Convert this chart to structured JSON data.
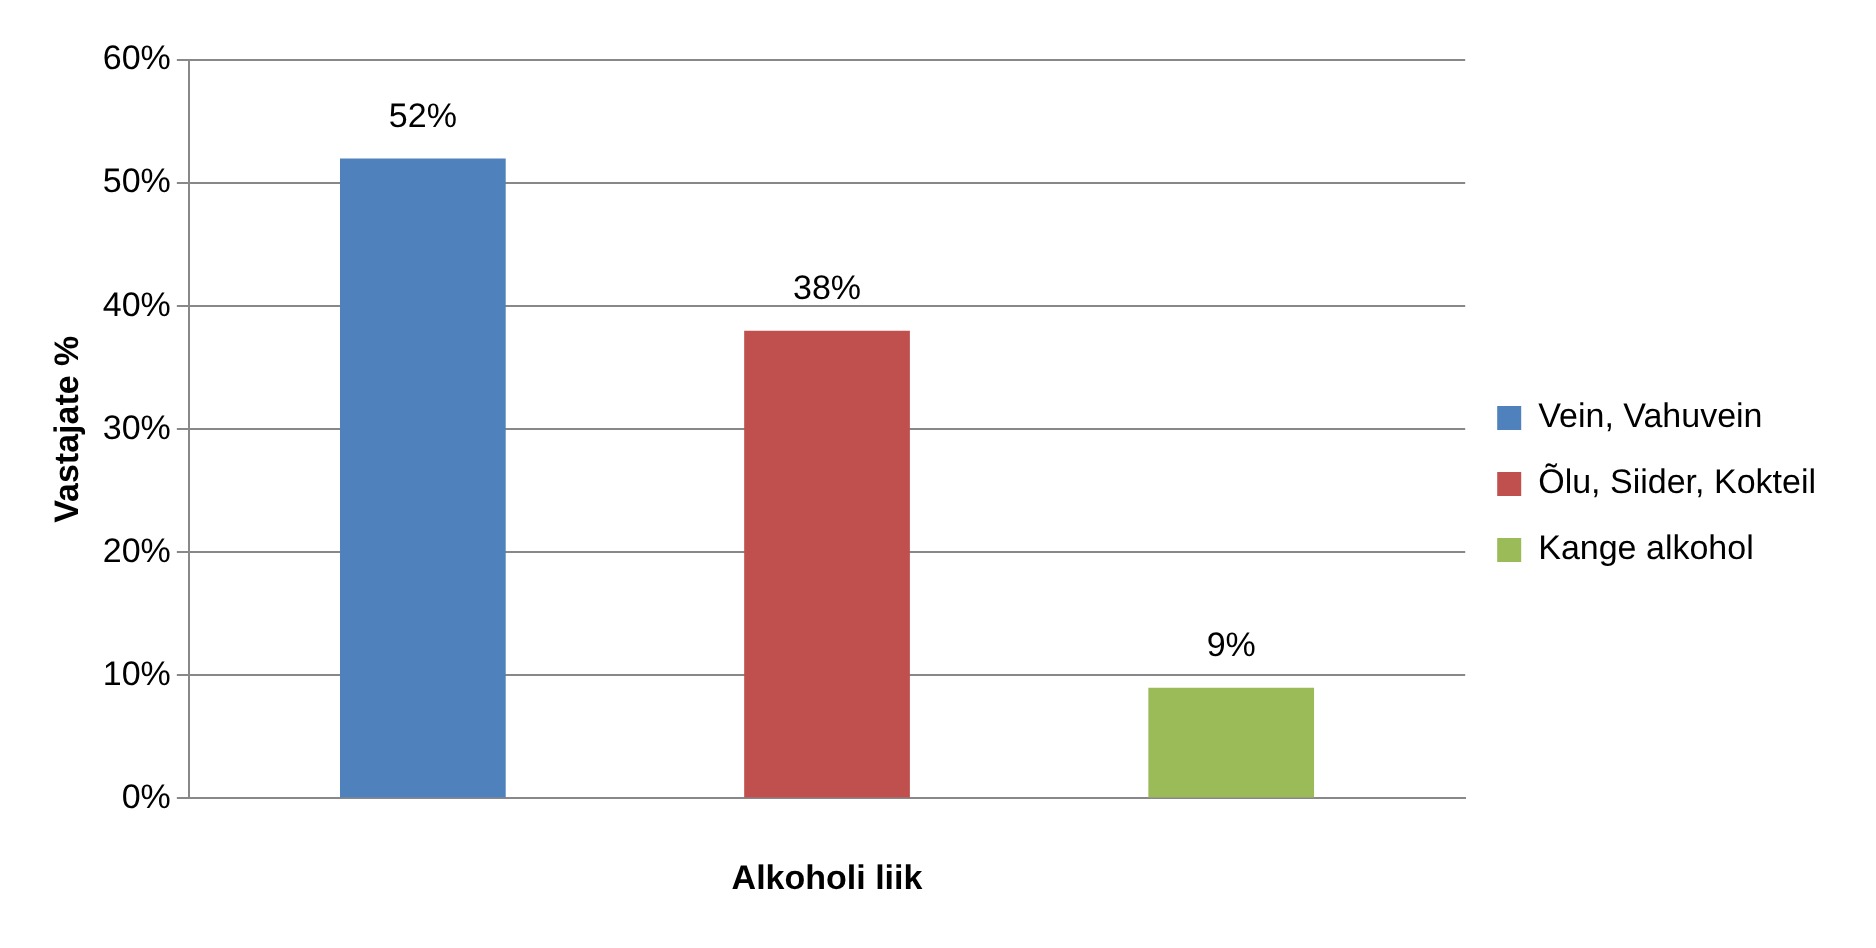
{
  "chart_data": {
    "type": "bar",
    "xlabel": "Alkoholi liik",
    "ylabel": "Vastajate %",
    "categories": [
      null
    ],
    "series": [
      {
        "name": "Vein, Vahuvein",
        "color": "#4f81bd",
        "values": [
          52
        ],
        "value_labels": [
          "52%"
        ]
      },
      {
        "name": "Õlu, Siider, Kokteil",
        "color": "#c0504d",
        "values": [
          38
        ],
        "value_labels": [
          "38%"
        ]
      },
      {
        "name": "Kange alkohol",
        "color": "#9bbb59",
        "values": [
          9
        ],
        "value_labels": [
          "9%"
        ]
      }
    ],
    "ylim": [
      0,
      60
    ],
    "yticks": [
      {
        "value": 0,
        "label": "0%"
      },
      {
        "value": 10,
        "label": "10%"
      },
      {
        "value": 20,
        "label": "20%"
      },
      {
        "value": 30,
        "label": "30%"
      },
      {
        "value": 40,
        "label": "40%"
      },
      {
        "value": 50,
        "label": "50%"
      },
      {
        "value": 60,
        "label": "60%"
      }
    ],
    "grid": "y",
    "legend": "right"
  }
}
